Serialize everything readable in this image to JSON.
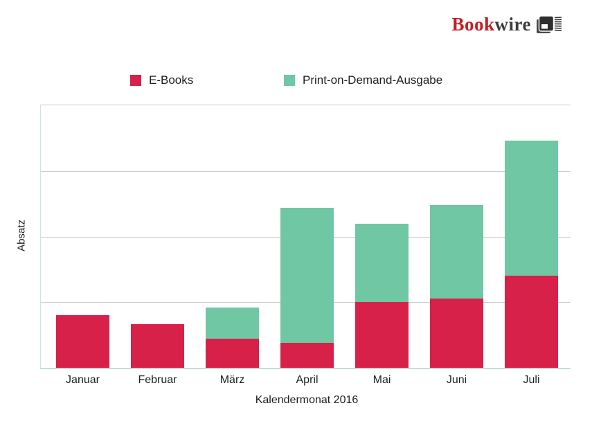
{
  "logo": {
    "brand_primary": "Book",
    "brand_secondary": "wire",
    "icon": "book-icon",
    "colors": {
      "primary": "#C41E24",
      "secondary": "#3D3D3D",
      "icon": "#2E2E2E"
    }
  },
  "chart_data": {
    "type": "bar",
    "stacked": true,
    "title": "",
    "xlabel": "Kalendermonat 2016",
    "ylabel": "Absatz",
    "categories": [
      "Januar",
      "Februar",
      "März",
      "April",
      "Mai",
      "Juni",
      "Juli"
    ],
    "series": [
      {
        "name": "E-Books",
        "color": "#D82148",
        "values": [
          20,
          16.5,
          11,
          9.5,
          25,
          26.5,
          35
        ]
      },
      {
        "name": "Print-on-Demand-Ausgabe",
        "color": "#6FC7A3",
        "values": [
          0,
          0,
          12,
          51.5,
          30,
          35.5,
          51.5
        ]
      }
    ],
    "ylim": [
      0,
      100
    ],
    "y_tick_labels_visible": false,
    "gridline_positions_pct": [
      25,
      50,
      75
    ],
    "legend_position": "top",
    "grid": true,
    "value_note": "y-axis unlabeled; values estimated as percent of plot height from the four equal gridline intervals"
  },
  "colors": {
    "gridline": "#CCCCCC",
    "axis_line": "#BFE0D0",
    "background": "#FFFFFF"
  }
}
